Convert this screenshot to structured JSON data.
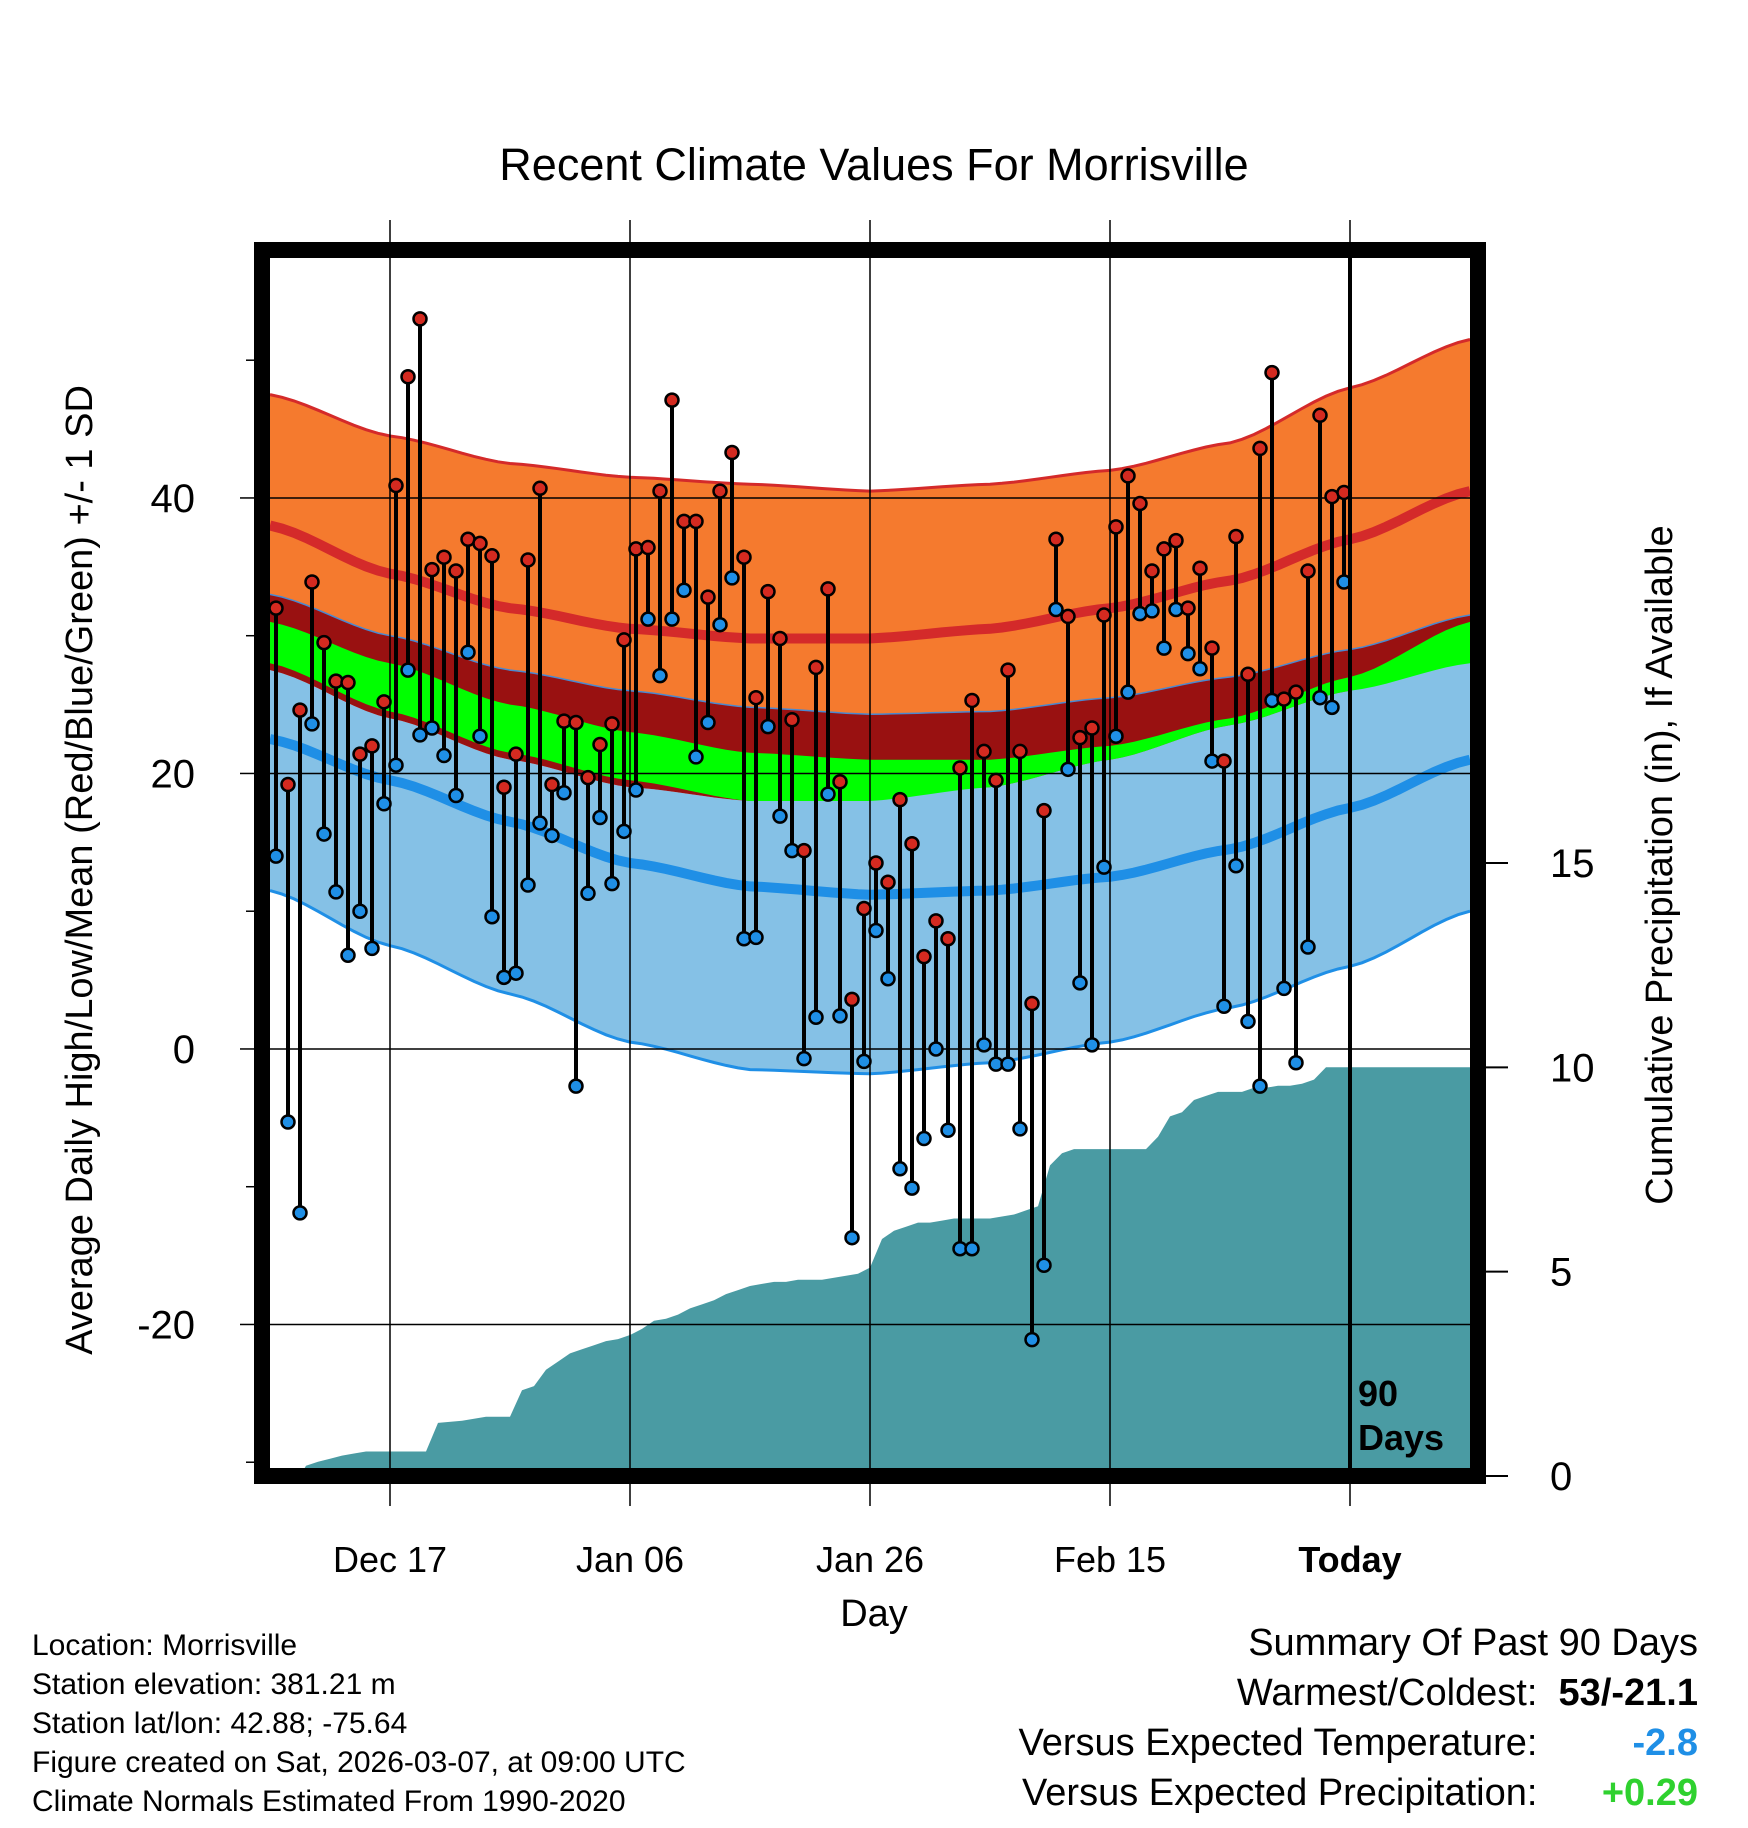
{
  "chart_data": {
    "type": "line",
    "title": "Recent Climate Values For Morrisville",
    "xlabel": "Day",
    "ylabel": "Average Daily High/Low/Mean (Red/Blue/Green) +/- 1 SD",
    "y2label": "Cumulative Precipitation (in), If Available",
    "ylim": [
      -31,
      58
    ],
    "y_ticks": [
      -20,
      0,
      20,
      40
    ],
    "y2lim": [
      0,
      30
    ],
    "y2_ticks": [
      0,
      5,
      10,
      15
    ],
    "x_range": [
      0,
      100
    ],
    "x_ticks": [
      {
        "day": 10,
        "label": "Dec 17"
      },
      {
        "day": 30,
        "label": "Jan 06"
      },
      {
        "day": 50,
        "label": "Jan 26"
      },
      {
        "day": 70,
        "label": "Feb 15"
      },
      {
        "day": 90,
        "label": "Today"
      }
    ],
    "today_marker": {
      "day": 90,
      "label_line1": "90",
      "label_line2": "Days"
    },
    "normals": {
      "days": [
        0,
        10,
        20,
        30,
        40,
        50,
        60,
        70,
        80,
        90,
        100
      ],
      "high_upper": [
        47.5,
        44.5,
        42.5,
        41.5,
        41.0,
        40.5,
        41.0,
        42.0,
        44.0,
        48.0,
        51.5
      ],
      "high_mean": [
        38.0,
        34.5,
        32.0,
        30.5,
        29.8,
        29.8,
        30.5,
        32.0,
        34.0,
        37.0,
        40.5
      ],
      "high_lower": [
        33.0,
        30.0,
        27.5,
        26.0,
        24.8,
        24.3,
        24.5,
        25.5,
        27.0,
        29.0,
        31.5
      ],
      "mean_upper": [
        31.0,
        28.0,
        25.0,
        23.0,
        21.5,
        21.0,
        21.0,
        22.0,
        24.0,
        27.0,
        31.0
      ],
      "mean_lower": [
        28.0,
        24.5,
        21.5,
        19.5,
        18.0,
        18.0,
        19.0,
        21.0,
        23.5,
        26.0,
        28.0
      ],
      "low_upper": [
        27.5,
        24.0,
        21.0,
        19.0,
        18.0,
        18.5,
        19.0,
        21.0,
        23.5,
        26.0,
        30.0
      ],
      "low_mean": [
        22.5,
        19.5,
        16.5,
        13.5,
        11.8,
        11.2,
        11.5,
        12.5,
        14.5,
        17.5,
        21.0
      ],
      "low_lower": [
        11.5,
        7.5,
        4.0,
        0.5,
        -1.5,
        -1.8,
        -1.0,
        0.5,
        3.0,
        6.0,
        10.0
      ]
    },
    "series": [
      {
        "name": "Daily High",
        "color": "#d42a20",
        "values": [
          32.0,
          19.2,
          24.6,
          33.9,
          29.5,
          26.7,
          26.6,
          21.4,
          22.0,
          25.2,
          40.9,
          48.8,
          53.0,
          34.8,
          35.7,
          34.7,
          37.0,
          36.7,
          35.8,
          19.0,
          21.4,
          35.5,
          40.7,
          19.2,
          23.8,
          23.7,
          19.7,
          22.1,
          23.6,
          29.7,
          36.3,
          36.4,
          40.5,
          47.1,
          38.3,
          38.3,
          32.8,
          40.5,
          43.3,
          35.7,
          25.5,
          33.2,
          29.8,
          23.9,
          14.4,
          27.7,
          33.4,
          19.4,
          3.6,
          10.2,
          13.5,
          12.1,
          18.1,
          14.9,
          6.7,
          9.3,
          8.0,
          20.4,
          25.3,
          21.6,
          19.5,
          27.5,
          21.6,
          3.3,
          17.3,
          37.0,
          31.4,
          22.6,
          23.3,
          31.5,
          37.9,
          41.6,
          39.6,
          34.7,
          36.3,
          36.9,
          32.0,
          34.9,
          29.1,
          20.9,
          37.2,
          27.2,
          43.6,
          49.1,
          25.4,
          25.9,
          34.7,
          46.0,
          40.1,
          40.4
        ]
      },
      {
        "name": "Daily Low",
        "color": "#1f8fe6",
        "values": [
          14.0,
          -5.3,
          -11.9,
          23.6,
          15.6,
          11.4,
          6.8,
          10.0,
          7.3,
          17.8,
          20.6,
          27.5,
          22.8,
          23.3,
          21.3,
          18.4,
          28.8,
          22.7,
          9.6,
          5.2,
          5.5,
          11.9,
          16.4,
          15.5,
          18.6,
          -2.7,
          11.3,
          16.8,
          12.0,
          15.8,
          18.8,
          31.2,
          27.1,
          31.2,
          33.3,
          21.2,
          23.7,
          30.8,
          34.2,
          8.0,
          8.1,
          23.4,
          16.9,
          14.4,
          -0.7,
          2.3,
          18.5,
          2.4,
          -13.7,
          -0.9,
          8.6,
          5.1,
          -8.7,
          -10.1,
          -6.5,
          0.0,
          -5.9,
          -14.5,
          -14.5,
          0.3,
          -1.1,
          -1.1,
          -5.8,
          -21.1,
          -15.7,
          31.9,
          20.3,
          4.8,
          0.3,
          13.2,
          22.7,
          25.9,
          31.6,
          31.8,
          29.1,
          31.9,
          28.7,
          27.6,
          20.9,
          3.1,
          13.3,
          2.0,
          -2.7,
          25.3,
          4.4,
          -1.0,
          7.4,
          25.5,
          24.8,
          33.9
        ]
      }
    ],
    "precip": {
      "days": [
        0,
        2.5,
        3,
        4,
        5,
        6,
        7,
        8,
        9,
        10,
        11,
        12,
        13,
        14,
        16,
        17,
        18,
        19,
        20,
        21,
        22,
        23,
        24,
        25,
        26,
        27,
        28,
        29,
        30,
        31,
        32,
        33,
        34,
        35,
        36,
        37,
        38,
        39,
        40,
        41,
        42,
        43,
        44,
        45,
        46,
        47,
        48,
        49,
        50,
        51,
        52,
        53,
        54,
        55,
        56,
        57,
        58,
        59,
        60,
        61,
        62,
        63,
        64,
        65,
        66,
        67,
        68,
        69,
        70,
        71,
        72,
        73,
        74,
        75,
        76,
        77,
        78,
        79,
        80,
        81,
        82,
        83,
        84,
        85,
        86,
        87,
        88,
        89,
        90,
        91,
        92,
        93,
        94,
        95,
        96,
        97,
        98,
        99,
        100
      ],
      "values": [
        0,
        0,
        0.25,
        0.35,
        0.42,
        0.5,
        0.55,
        0.6,
        0.6,
        0.6,
        0.6,
        0.6,
        0.6,
        1.3,
        1.35,
        1.4,
        1.45,
        1.45,
        1.45,
        2.1,
        2.2,
        2.6,
        2.8,
        3.0,
        3.1,
        3.2,
        3.3,
        3.35,
        3.45,
        3.6,
        3.8,
        3.85,
        3.95,
        4.1,
        4.2,
        4.3,
        4.45,
        4.55,
        4.65,
        4.7,
        4.75,
        4.75,
        4.8,
        4.8,
        4.8,
        4.85,
        4.9,
        4.95,
        5.1,
        5.8,
        6.0,
        6.1,
        6.2,
        6.2,
        6.25,
        6.3,
        6.3,
        6.3,
        6.3,
        6.35,
        6.4,
        6.5,
        6.6,
        7.6,
        7.9,
        8.0,
        8.0,
        8.0,
        8.0,
        8.0,
        8.0,
        8.0,
        8.3,
        8.8,
        8.9,
        9.2,
        9.3,
        9.4,
        9.4,
        9.4,
        9.5,
        9.5,
        9.55,
        9.55,
        9.6,
        9.7,
        10.0,
        10.0,
        10.0,
        10.0,
        10.0,
        10.0,
        10.0,
        10.0,
        10.0,
        10.0,
        10.0,
        10.0,
        10.0
      ]
    }
  },
  "info": {
    "location": "Location: Morrisville",
    "elevation": "Station elevation: 381.21 m",
    "latlon": "Station lat/lon: 42.88; -75.64",
    "created": "Figure created on Sat, 2026-03-07, at 09:00 UTC",
    "normals": "Climate Normals Estimated From 1990-2020"
  },
  "summary": {
    "title": "Summary Of Past 90 Days",
    "warmest_label": "Warmest/Coldest:",
    "warmest_value": "53/-21.1",
    "temp_label": "Versus Expected Temperature:",
    "temp_value": "-2.8",
    "precip_label": "Versus Expected Precipitation:",
    "precip_value": "+0.29"
  },
  "colors": {
    "high_band": "#f57a2e",
    "high_mean": "#d42a2a",
    "high_low_overlap": "#991111",
    "mean_band": "#00ff00",
    "low_band": "#85c1e6",
    "low_mean": "#1f8fe6",
    "low_edge": "#1f8fe6",
    "precip": "#4a9ba3"
  }
}
